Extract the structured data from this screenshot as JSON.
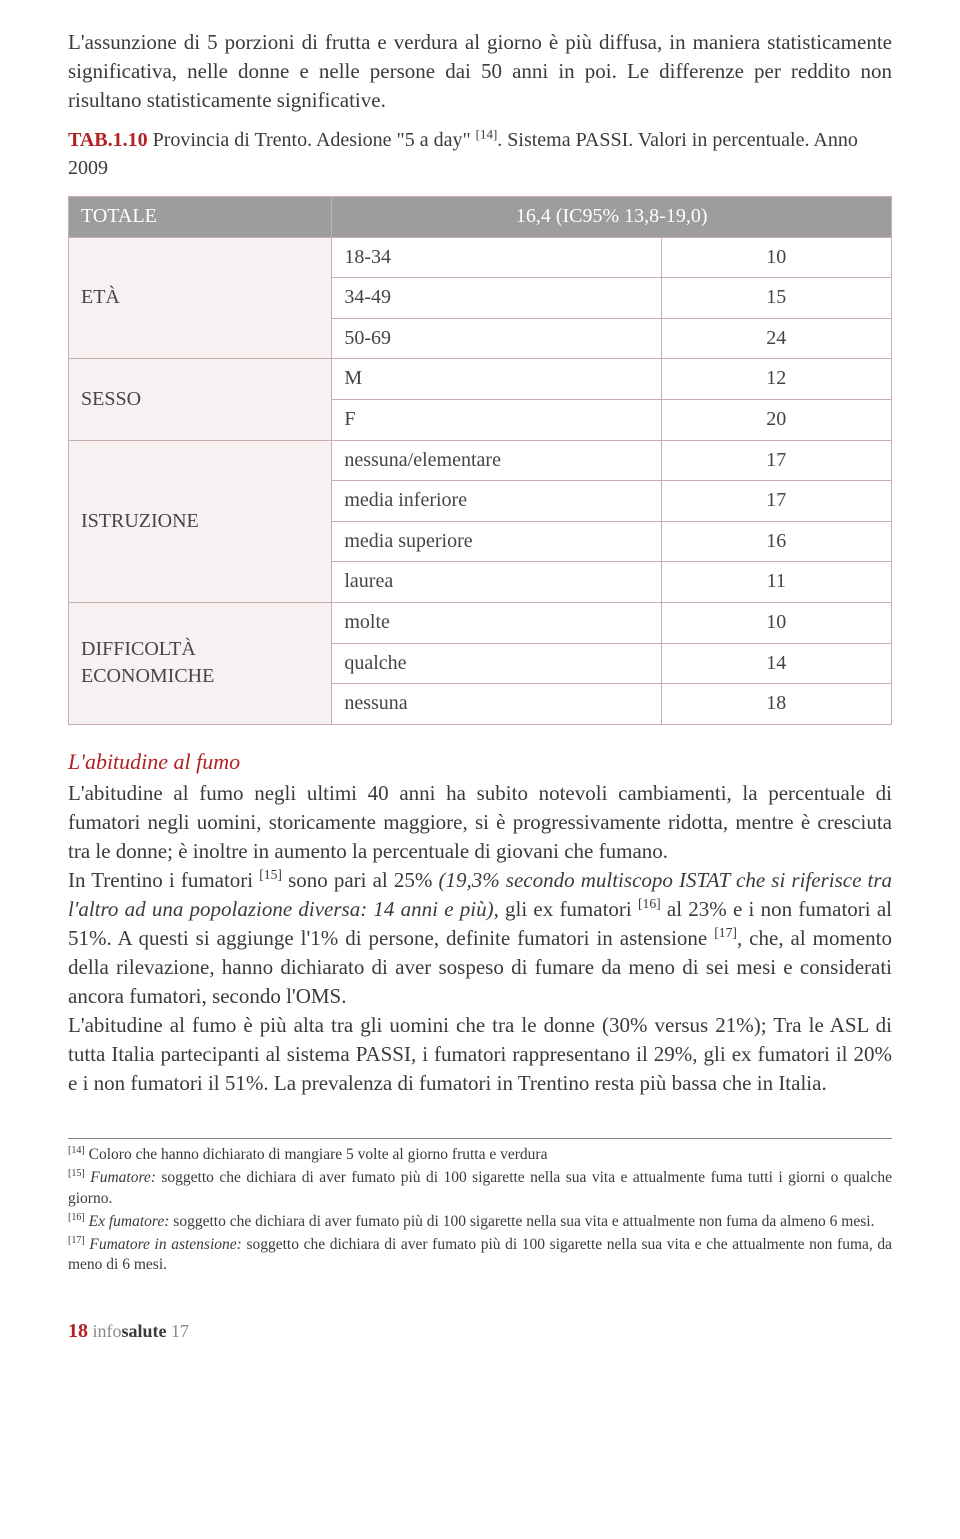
{
  "intro": {
    "paragraph": "L'assunzione di 5 porzioni di frutta e verdura al giorno è più diffusa, in maniera statisticamente significativa, nelle donne e nelle persone dai 50 anni in poi. Le differenze per reddito non risultano statisticamente significative."
  },
  "table": {
    "type": "table",
    "caption_label": "TAB.1.10",
    "caption_text": " Provincia di Trento. Adesione \"5 a day\" ",
    "caption_ref": "[14]",
    "caption_tail": ". Sistema PASSI. Valori in percentuale. Anno 2009",
    "header_left": "TOTALE",
    "header_right": "16,4 (IC95% 13,8-19,0)",
    "groups": [
      {
        "name": "ETÀ",
        "rows": [
          {
            "label": "18-34",
            "value": "10"
          },
          {
            "label": "34-49",
            "value": "15"
          },
          {
            "label": "50-69",
            "value": "24"
          }
        ]
      },
      {
        "name": "SESSO",
        "rows": [
          {
            "label": "M",
            "value": "12"
          },
          {
            "label": "F",
            "value": "20"
          }
        ]
      },
      {
        "name": "ISTRUZIONE",
        "rows": [
          {
            "label": "nessuna/elementare",
            "value": "17"
          },
          {
            "label": "media inferiore",
            "value": "17"
          },
          {
            "label": "media superiore",
            "value": "16"
          },
          {
            "label": "laurea",
            "value": "11"
          }
        ]
      },
      {
        "name": "DIFFICOLTÀ ECONOMICHE",
        "rows": [
          {
            "label": "molte",
            "value": "10"
          },
          {
            "label": "qualche",
            "value": "14"
          },
          {
            "label": "nessuna",
            "value": "18"
          }
        ]
      }
    ],
    "border_color": "#c9b0b0",
    "header_bg": "#9d9d9d",
    "header_fg": "#ffffff",
    "group_bg": "#f7f1f1",
    "cell_bg": "#ffffff",
    "font_size": 20
  },
  "section": {
    "heading": "L'abitudine al fumo",
    "p1_a": "L'abitudine al fumo negli ultimi 40 anni ha subito notevoli cambiamenti, la percentuale di fumatori negli uomini, storicamente maggiore, si è progressivamente ridotta, mentre è cresciuta tra le donne; è inoltre in aumento la percentuale di giovani che fumano.",
    "p2_a": "In Trentino i fumatori ",
    "p2_ref1": "[15]",
    "p2_b": " sono pari al 25% ",
    "p2_c_italic": "(19,3% secondo multiscopo ISTAT che si riferisce tra l'altro ad una popolazione diversa: 14 anni e più)",
    "p2_d": ", gli ex fumatori ",
    "p2_ref2": "[16]",
    "p2_e": " al 23% e i non fumatori al 51%. A questi si aggiunge l'1% di persone, definite fumatori in astensione ",
    "p2_ref3": "[17]",
    "p2_f": ", che, al momento della rilevazione, hanno dichiarato di aver sospeso di fumare da meno di sei mesi e considerati ancora fumatori, secondo l'OMS.",
    "p3": "L'abitudine al fumo è più alta tra gli uomini che tra le donne (30% versus 21%); Tra le ASL di tutta Italia partecipanti al sistema PASSI, i fumatori rappresentano il 29%, gli ex fumatori il 20% e i non fumatori il 51%. La prevalenza di fumatori in Trentino resta più bassa che in Italia."
  },
  "footnotes": {
    "n14_ref": "[14]",
    "n14": " Coloro che hanno dichiarato di mangiare 5 volte al giorno frutta e verdura",
    "n15_ref": "[15]",
    "n15_term": " Fumatore:",
    "n15_body": " soggetto che dichiara di aver fumato più di 100 sigarette nella sua vita e attualmente fuma tutti i giorni o qualche giorno.",
    "n16_ref": "[16]",
    "n16_term": " Ex fumatore:",
    "n16_body": " soggetto che dichiara di aver fumato più di 100 sigarette nella sua vita e attualmente non fuma da almeno 6 mesi.",
    "n17_ref": "[17]",
    "n17_term": " Fumatore in astensione:",
    "n17_body": " soggetto che dichiara di aver fumato più di 100 sigarette nella sua vita e che attualmente non fuma, da meno di 6 mesi."
  },
  "footer": {
    "page": "18",
    "brand_a": "info",
    "brand_b": "salute",
    "issue": " 17"
  },
  "colors": {
    "accent": "#b22222",
    "text": "#3a3a3a"
  }
}
